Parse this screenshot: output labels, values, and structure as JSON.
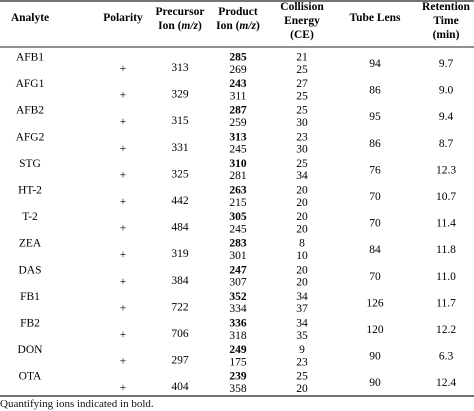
{
  "table": {
    "headers": [
      {
        "lines": [
          "Analyte"
        ]
      },
      {
        "lines": [
          "Polarity"
        ]
      },
      {
        "lines": [
          "Precursor",
          "Ion (m/z)"
        ]
      },
      {
        "lines": [
          "Product",
          "Ion (m/z)"
        ]
      },
      {
        "lines": [
          "Collision",
          "Energy",
          "(CE)"
        ]
      },
      {
        "lines": [
          "Tube Lens"
        ]
      },
      {
        "lines": [
          "Retention",
          "Time",
          "(min)"
        ]
      }
    ],
    "rows": [
      {
        "analyte": "AFB1",
        "polarity": "+",
        "precursor": "313",
        "products": [
          "285",
          "269"
        ],
        "ce": [
          "21",
          "25"
        ],
        "tube_lens": "94",
        "rt": "9.7"
      },
      {
        "analyte": "AFG1",
        "polarity": "+",
        "precursor": "329",
        "products": [
          "243",
          "311"
        ],
        "ce": [
          "27",
          "25"
        ],
        "tube_lens": "86",
        "rt": "9.0"
      },
      {
        "analyte": "AFB2",
        "polarity": "+",
        "precursor": "315",
        "products": [
          "287",
          "259"
        ],
        "ce": [
          "25",
          "30"
        ],
        "tube_lens": "95",
        "rt": "9.4"
      },
      {
        "analyte": "AFG2",
        "polarity": "+",
        "precursor": "331",
        "products": [
          "313",
          "245"
        ],
        "ce": [
          "23",
          "30"
        ],
        "tube_lens": "86",
        "rt": "8.7"
      },
      {
        "analyte": "STG",
        "polarity": "+",
        "precursor": "325",
        "products": [
          "310",
          "281"
        ],
        "ce": [
          "25",
          "34"
        ],
        "tube_lens": "76",
        "rt": "12.3"
      },
      {
        "analyte": "HT-2",
        "polarity": "+",
        "precursor": "442",
        "products": [
          "263",
          "215"
        ],
        "ce": [
          "20",
          "20"
        ],
        "tube_lens": "70",
        "rt": "10.7"
      },
      {
        "analyte": "T-2",
        "polarity": "+",
        "precursor": "484",
        "products": [
          "305",
          "245"
        ],
        "ce": [
          "20",
          "20"
        ],
        "tube_lens": "70",
        "rt": "11.4"
      },
      {
        "analyte": "ZEA",
        "polarity": "+",
        "precursor": "319",
        "products": [
          "283",
          "301"
        ],
        "ce": [
          "8",
          "10"
        ],
        "tube_lens": "84",
        "rt": "11.8"
      },
      {
        "analyte": "DAS",
        "polarity": "+",
        "precursor": "384",
        "products": [
          "247",
          "307"
        ],
        "ce": [
          "20",
          "20"
        ],
        "tube_lens": "70",
        "rt": "11.0"
      },
      {
        "analyte": "FB1",
        "polarity": "+",
        "precursor": "722",
        "products": [
          "352",
          "334"
        ],
        "ce": [
          "34",
          "37"
        ],
        "tube_lens": "126",
        "rt": "11.7"
      },
      {
        "analyte": "FB2",
        "polarity": "+",
        "precursor": "706",
        "products": [
          "336",
          "318"
        ],
        "ce": [
          "34",
          "35"
        ],
        "tube_lens": "120",
        "rt": "12.2"
      },
      {
        "analyte": "DON",
        "polarity": "+",
        "precursor": "297",
        "products": [
          "249",
          "175"
        ],
        "ce": [
          "9",
          "23"
        ],
        "tube_lens": "90",
        "rt": "6.3"
      },
      {
        "analyte": "OTA",
        "polarity": "+",
        "precursor": "404",
        "products": [
          "239",
          "358"
        ],
        "ce": [
          "25",
          "20"
        ],
        "tube_lens": "90",
        "rt": "12.4"
      }
    ]
  },
  "footnote": "Quantifying ions indicated in bold."
}
